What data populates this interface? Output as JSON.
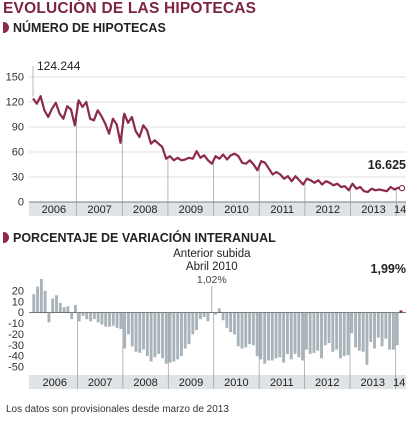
{
  "title": "EVOLUCIÓN DE LAS HIPOTECAS",
  "footnote": "Los datos son provisionales desde marzo de 2013",
  "colors": {
    "accent": "#8b2a4b",
    "line": "#8b2a4b",
    "bars": "#a8b3ba",
    "axis_band": "#dfe3e6",
    "title": "#7d2344"
  },
  "chart_data": [
    {
      "type": "line",
      "title": "NÚMERO DE HIPOTECAS",
      "ylim": [
        0,
        150
      ],
      "yticks": [
        0,
        30,
        60,
        90,
        120,
        150
      ],
      "years": [
        "2006",
        "2007",
        "2008",
        "2009",
        "2010",
        "2011",
        "2012",
        "2013",
        "14"
      ],
      "start_label": "124.244",
      "end_label": "16.625",
      "series": [
        {
          "values": [
            124.2,
            118,
            127,
            110,
            102,
            112,
            119,
            106,
            100,
            115,
            111,
            92,
            122,
            114,
            120,
            100,
            98,
            110,
            103,
            94,
            82,
            100,
            93,
            71,
            106,
            95,
            102,
            85,
            78,
            92,
            86,
            70,
            74,
            70,
            66,
            52,
            55,
            50,
            53,
            50,
            51,
            53,
            52,
            61,
            53,
            56,
            50,
            46,
            55,
            52,
            57,
            51,
            56,
            58,
            55,
            47,
            46,
            50,
            45,
            38,
            49,
            47,
            40,
            33,
            36,
            33,
            28,
            31,
            25,
            31,
            26,
            21,
            28,
            26,
            23,
            26,
            21,
            25,
            23,
            20,
            22,
            18,
            19,
            14,
            22,
            16,
            18,
            13,
            12,
            16,
            14,
            15,
            14,
            13,
            18,
            15,
            17,
            16.6
          ]
        }
      ]
    },
    {
      "type": "bar",
      "title": "PORCENTAJE DE VARIACIÓN INTERANUAL",
      "ylim": [
        -50,
        30
      ],
      "yticks": [
        -50,
        -40,
        -30,
        -20,
        -10,
        0,
        10,
        20
      ],
      "years": [
        "2006",
        "2007",
        "2008",
        "2009",
        "2010",
        "2011",
        "2012",
        "2013",
        "14"
      ],
      "annotation": {
        "line1": "Anterior subida",
        "line2": "Abril 2010",
        "value": "1,02%"
      },
      "end_label": "1,99%",
      "series": [
        {
          "values": [
            17,
            24,
            31,
            20,
            -9,
            13,
            16,
            9,
            5,
            6,
            -6,
            7,
            -8,
            -3,
            -6,
            -8,
            -6,
            -9,
            -11,
            -13,
            -13,
            -12,
            -14,
            -15,
            -33,
            -20,
            -31,
            -36,
            -37,
            -34,
            -40,
            -45,
            -41,
            -38,
            -42,
            -47,
            -46,
            -45,
            -43,
            -40,
            -33,
            -29,
            -20,
            -16,
            -6,
            -4,
            -8,
            1.02,
            -2,
            4,
            -7,
            -14,
            -18,
            -20,
            -31,
            -33,
            -32,
            -29,
            -30,
            -40,
            -43,
            -47,
            -44,
            -44,
            -42,
            -41,
            -46,
            -38,
            -43,
            -38,
            -41,
            -44,
            -34,
            -38,
            -37,
            -35,
            -42,
            -30,
            -28,
            -36,
            -34,
            -42,
            -40,
            -39,
            -19,
            -32,
            -35,
            -36,
            -48,
            -27,
            -33,
            -23,
            -31,
            -24,
            -34,
            -34,
            -30,
            1.99
          ]
        }
      ]
    }
  ]
}
